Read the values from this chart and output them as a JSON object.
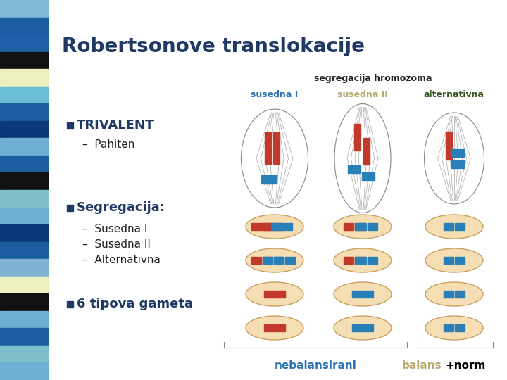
{
  "title": "Robertsonove translokacije",
  "title_color": "#1F3864",
  "title_fontsize": 20,
  "bg_color": "#FFFFFF",
  "sidebar_colors": [
    "#7EB8D4",
    "#1B5EA0",
    "#2060A8",
    "#111111",
    "#EEEFC0",
    "#6BBFD4",
    "#1B5EA0",
    "#0A3878",
    "#6EB0D4",
    "#1B5EA0",
    "#111111",
    "#7FBFCC",
    "#6EB0D4",
    "#0A3878",
    "#1B5EA0",
    "#7FB3D3",
    "#EEEFC0",
    "#111111",
    "#6EB0D4",
    "#1B5EA0",
    "#7FBFCC",
    "#6EB0D4"
  ],
  "bullet_color": "#1F3864",
  "bullet1": "TRIVALENT",
  "bullet1_sub": "Pahiten",
  "bullet2": "Segregacija:",
  "bullet2_subs": [
    "Susedna I",
    "Susedna II",
    "Alternativna"
  ],
  "bullet3": "6 tipova gameta",
  "header_label": "segregacija hromozoma",
  "col1_label": "susedna I",
  "col2_label": "susedna II",
  "col3_label": "alternativna",
  "col1_color": "#2E75B6",
  "col2_color": "#B8A870",
  "col3_color": "#375623",
  "bottom_left": "nebalansirani",
  "bottom_left_color": "#2E75B6",
  "bottom_right": "balans",
  "bottom_right_color": "#B8A870",
  "bottom_plus": "+norm",
  "bottom_plus_color": "#000000"
}
